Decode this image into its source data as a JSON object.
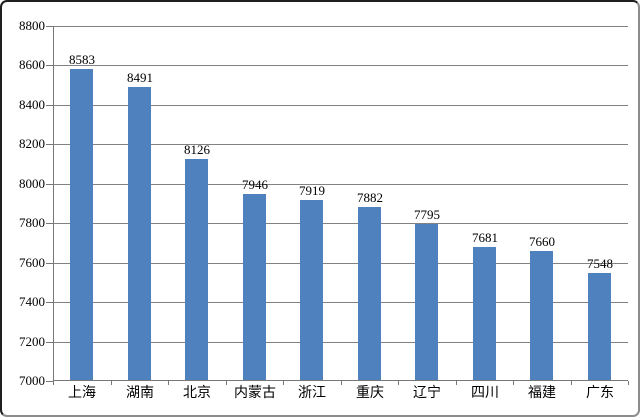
{
  "chart_data": {
    "type": "bar",
    "categories": [
      "上海",
      "湖南",
      "北京",
      "内蒙古",
      "浙江",
      "重庆",
      "辽宁",
      "四川",
      "福建",
      "广东"
    ],
    "values": [
      8583,
      8491,
      8126,
      7946,
      7919,
      7882,
      7795,
      7681,
      7660,
      7548
    ],
    "title": "",
    "xlabel": "",
    "ylabel": "",
    "ylim": [
      7000,
      8800
    ],
    "ytick_step": 200,
    "ytick_labels": [
      "7000",
      "7200",
      "7400",
      "7600",
      "7800",
      "8000",
      "8200",
      "8400",
      "8600",
      "8800"
    ],
    "data_labels_shown": true,
    "grid": true,
    "legend": false,
    "colors": {
      "bar_fill": "#4E81BD",
      "gridline": "#828282",
      "axis_line": "#777777",
      "text": "#000000",
      "background": "#FFFFFF"
    }
  }
}
